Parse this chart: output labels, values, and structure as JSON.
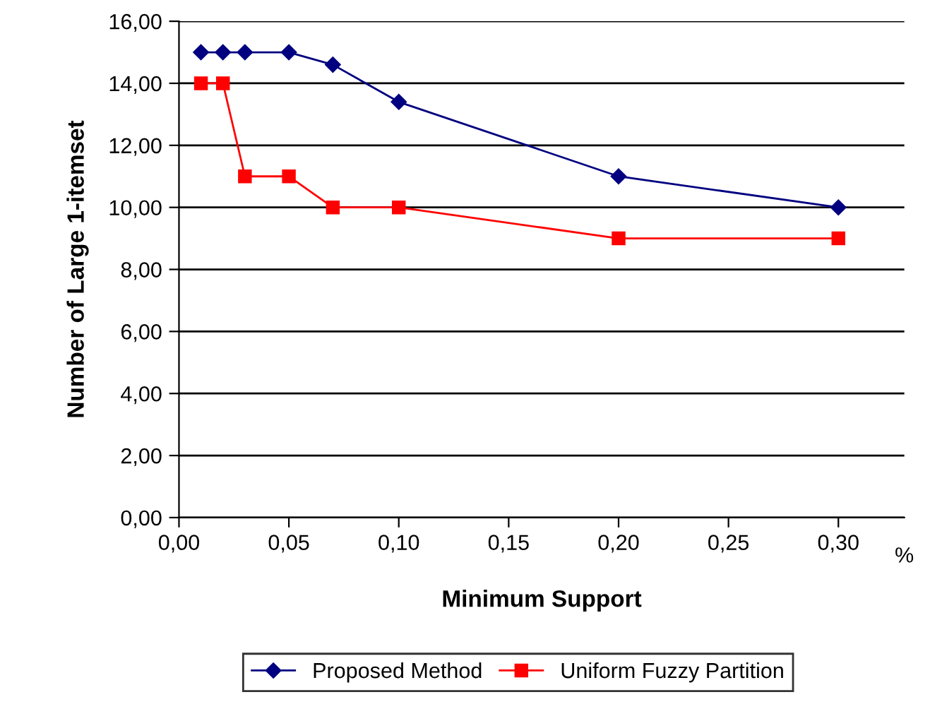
{
  "chart_data": {
    "type": "line",
    "xlabel": "Minimum Support",
    "ylabel": "Number of Large 1-itemset",
    "xlim": [
      0,
      0.33
    ],
    "xticks": [
      {
        "value": 0,
        "label": "0,00"
      },
      {
        "value": 0.05,
        "label": "0,05"
      },
      {
        "value": 0.1,
        "label": "0,10"
      },
      {
        "value": 0.15,
        "label": "0,15"
      },
      {
        "value": 0.2,
        "label": "0,20"
      },
      {
        "value": 0.25,
        "label": "0,25"
      },
      {
        "value": 0.3,
        "label": "0,30"
      }
    ],
    "ylim": [
      0,
      16
    ],
    "yticks": [
      {
        "value": 0,
        "label": "0,00"
      },
      {
        "value": 2,
        "label": "2,00"
      },
      {
        "value": 4,
        "label": "4,00"
      },
      {
        "value": 6,
        "label": "6,00"
      },
      {
        "value": 8,
        "label": "8,00"
      },
      {
        "value": 10,
        "label": "10,00"
      },
      {
        "value": 12,
        "label": "12,00"
      },
      {
        "value": 14,
        "label": "14,00"
      },
      {
        "value": 16,
        "label": "16,00"
      }
    ],
    "x": [
      0.01,
      0.02,
      0.03,
      0.05,
      0.07,
      0.1,
      0.2,
      0.3
    ],
    "series": [
      {
        "name": "Proposed Method",
        "color": "#000080",
        "marker": "diamond",
        "values": [
          15,
          15,
          15,
          15,
          14.6,
          13.4,
          11,
          10
        ]
      },
      {
        "name": "Uniform Fuzzy Partition",
        "color": "#ff0000",
        "marker": "square",
        "values": [
          14,
          14,
          11,
          11,
          10,
          10,
          9,
          9
        ]
      }
    ],
    "annotations": [
      "%"
    ],
    "grid": "y",
    "legend": "bottom",
    "line_style": "solid"
  }
}
